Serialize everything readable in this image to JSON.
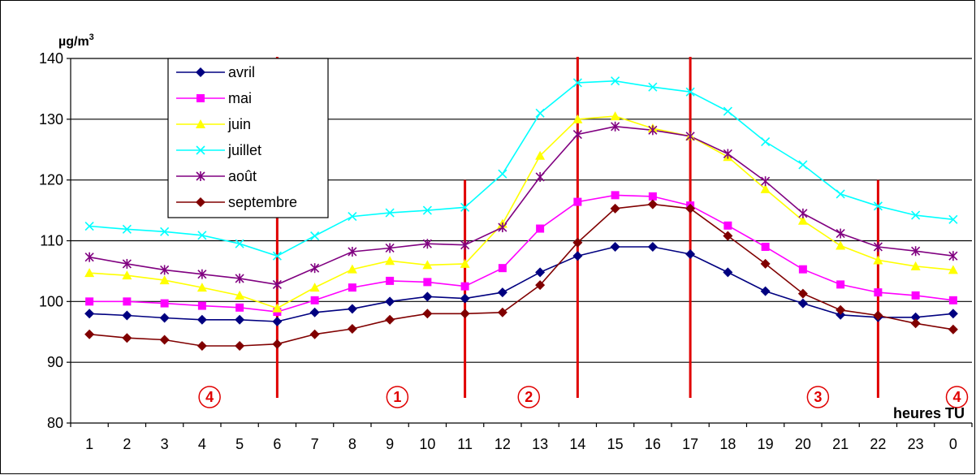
{
  "chart_data": {
    "type": "line",
    "ylabel": "µg/m",
    "ylabel_sup": "3",
    "xlabel": "heures TU",
    "ylim": [
      80,
      140
    ],
    "yticks": [
      80,
      90,
      100,
      110,
      120,
      130,
      140
    ],
    "categories": [
      "1",
      "2",
      "3",
      "4",
      "5",
      "6",
      "7",
      "8",
      "9",
      "10",
      "11",
      "12",
      "13",
      "14",
      "15",
      "16",
      "17",
      "18",
      "19",
      "20",
      "21",
      "22",
      "23",
      "0"
    ],
    "grid": "horizontal",
    "legend": "top-left",
    "series": [
      {
        "name": "avril",
        "color": "#000080",
        "marker": "diamond",
        "values": [
          98,
          97.7,
          97.3,
          97,
          97,
          96.7,
          98.2,
          98.8,
          100,
          100.8,
          100.5,
          101.5,
          104.8,
          107.5,
          109,
          109,
          107.8,
          104.8,
          101.7,
          99.7,
          97.8,
          97.4,
          97.4,
          98
        ]
      },
      {
        "name": "mai",
        "color": "#ff00ff",
        "marker": "square",
        "values": [
          100,
          100,
          99.7,
          99.3,
          99,
          98.3,
          100.2,
          102.3,
          103.4,
          103.2,
          102.5,
          105.5,
          112,
          116.4,
          117.5,
          117.3,
          115.8,
          112.5,
          109,
          105.3,
          102.8,
          101.5,
          101,
          100.2
        ]
      },
      {
        "name": "juin",
        "color": "#ffff00",
        "marker": "triangle",
        "values": [
          104.7,
          104.3,
          103.5,
          102.3,
          101,
          98.9,
          102.3,
          105.3,
          106.7,
          106,
          106.2,
          112.8,
          124,
          130,
          130.5,
          128.5,
          127.2,
          123.8,
          118.5,
          113.3,
          109.2,
          106.8,
          105.8,
          105.2
        ]
      },
      {
        "name": "juillet",
        "color": "#00ffff",
        "marker": "x",
        "values": [
          112.4,
          111.9,
          111.5,
          110.9,
          109.5,
          107.5,
          110.8,
          114,
          114.6,
          115,
          115.5,
          121,
          131,
          136,
          136.3,
          135.3,
          134.5,
          131.3,
          126.3,
          122.5,
          117.7,
          115.7,
          114.2,
          113.5
        ]
      },
      {
        "name": "août",
        "color": "#800080",
        "marker": "star",
        "values": [
          107.3,
          106.2,
          105.2,
          104.5,
          103.8,
          102.8,
          105.5,
          108.2,
          108.8,
          109.5,
          109.3,
          112.2,
          120.5,
          127.5,
          128.8,
          128.2,
          127.2,
          124.3,
          119.8,
          114.5,
          111.2,
          109,
          108.3,
          107.5
        ]
      },
      {
        "name": "septembre",
        "color": "#800000",
        "marker": "diamond",
        "values": [
          94.6,
          94,
          93.7,
          92.7,
          92.7,
          93,
          94.6,
          95.5,
          97,
          98,
          98,
          98.2,
          102.7,
          109.7,
          115.3,
          116,
          115.3,
          110.8,
          106.2,
          101.3,
          98.6,
          97.7,
          96.4,
          95.4
        ]
      }
    ],
    "dividers": [
      "6",
      "11",
      "14",
      "17",
      "22"
    ],
    "periods": [
      {
        "label": "4",
        "position": 3.7
      },
      {
        "label": "1",
        "position": 8.7
      },
      {
        "label": "2",
        "position": 12.2
      },
      {
        "label": "3",
        "position": 19.9
      },
      {
        "label": "4",
        "position": 23.6
      }
    ]
  }
}
